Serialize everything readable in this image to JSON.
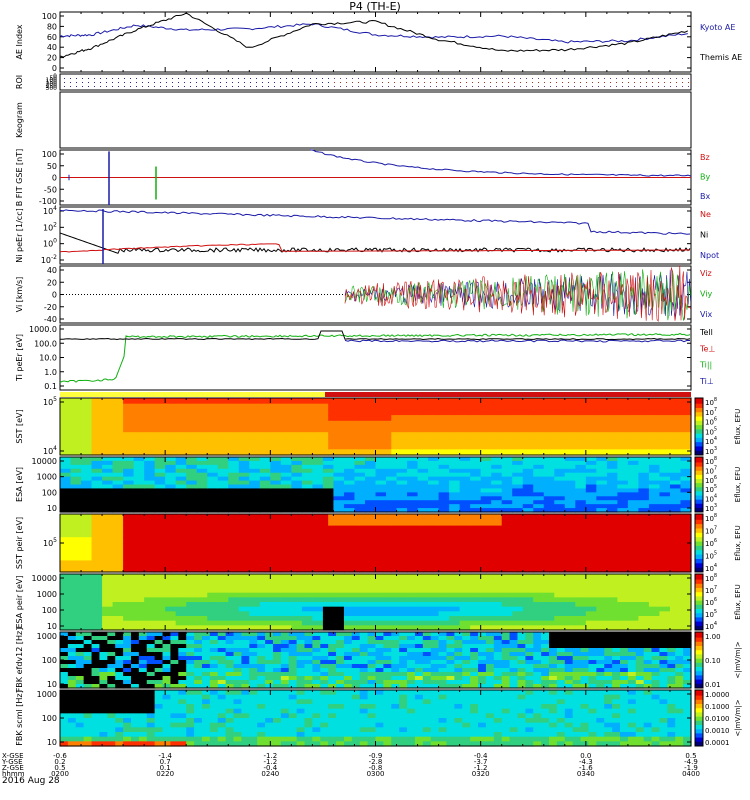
{
  "title": "P4 (TH-E)",
  "date": "2016 Aug 28",
  "colors": {
    "blue": "#1a1aa8",
    "red": "#d01010",
    "green": "#10b010",
    "black": "#000000"
  },
  "chart_data": [
    {
      "type": "line",
      "ylabel": "AE Index",
      "yticks": [
        "100",
        "80",
        "60",
        "40",
        "20",
        "0"
      ],
      "ylim": [
        0,
        100
      ],
      "legend": [
        "Kyoto AE",
        "Themis AE"
      ],
      "series": [
        {
          "name": "Kyoto AE",
          "color": "#1a1aa8",
          "x": [
            0,
            0.05,
            0.12,
            0.2,
            0.3,
            0.4,
            0.5,
            0.6,
            0.7,
            0.8,
            0.9,
            1.0
          ],
          "values": [
            60,
            62,
            78,
            70,
            72,
            80,
            62,
            58,
            60,
            50,
            52,
            65
          ]
        },
        {
          "name": "Themis AE",
          "color": "#000000",
          "x": [
            0,
            0.05,
            0.12,
            0.2,
            0.3,
            0.4,
            0.5,
            0.6,
            0.7,
            0.8,
            0.9,
            1.0
          ],
          "values": [
            25,
            40,
            70,
            98,
            40,
            80,
            84,
            54,
            35,
            37,
            48,
            70
          ]
        }
      ]
    },
    {
      "type": "other",
      "ylabel": "ROI",
      "yticks": [
        "0",
        "50",
        "100",
        "150",
        "200",
        "250",
        "300"
      ]
    },
    {
      "type": "other",
      "ylabel": "Keogram"
    },
    {
      "type": "line",
      "ylabel": "B FIT GSE [nT]",
      "yticks": [
        "100",
        "50",
        "0",
        "-50",
        "-100"
      ],
      "ylim": [
        -100,
        100
      ],
      "legend": [
        "Bz",
        "By",
        "Bx"
      ],
      "series": [
        {
          "name": "Bz",
          "color": "#d01010",
          "x": [
            0,
            1
          ],
          "values": [
            0,
            0
          ]
        },
        {
          "name": "By",
          "color": "#10b010",
          "x": [
            0.17,
            0.17
          ],
          "values": [
            -80,
            40
          ]
        },
        {
          "name": "Bx",
          "color": "#1a1aa8",
          "x": [
            0.45,
            0.5,
            0.6,
            0.7,
            0.8,
            0.9,
            1.0
          ],
          "values": [
            100,
            60,
            35,
            20,
            15,
            10,
            5
          ]
        }
      ]
    },
    {
      "type": "line",
      "ylabel": "Ni peEr [1/cc]",
      "yticks": [
        "10^4",
        "10^2",
        "10^0",
        "10^-2"
      ],
      "legend": [
        "Ne",
        "Ni",
        "Npot"
      ]
    },
    {
      "type": "line",
      "ylabel": "Vi [km/s]",
      "yticks": [
        "40",
        "20",
        "0",
        "-20",
        "-40"
      ],
      "ylim": [
        -50,
        50
      ],
      "legend": [
        "Viz",
        "Viy",
        "Vix"
      ]
    },
    {
      "type": "line",
      "ylabel": "Ti peEr [eV]",
      "yticks": [
        "1000.0",
        "100.0",
        "10.0",
        "1.0",
        "0.1"
      ],
      "legend": [
        "Tell",
        "Te⊥",
        "Ti||",
        "Ti⊥"
      ]
    },
    {
      "type": "heatmap",
      "ylabel": "SST [eV]",
      "yticks": [
        "10^5",
        "10^4"
      ],
      "colorbar_label": "Eflux, EFU",
      "colorbar_ticks": [
        "10^8",
        "10^7",
        "10^6",
        "10^5",
        "10^4",
        "10^3"
      ]
    },
    {
      "type": "heatmap",
      "ylabel": "ESA [eV]",
      "yticks": [
        "10000",
        "1000",
        "100",
        "10"
      ],
      "colorbar_label": "Eflux, EFU",
      "colorbar_ticks": [
        "10^8",
        "10^7",
        "10^6",
        "10^5",
        "10^4",
        "10^3"
      ]
    },
    {
      "type": "heatmap",
      "ylabel": "SST peir [eV]",
      "yticks": [
        "10^5"
      ],
      "colorbar_label": "Eflux, EFU",
      "colorbar_ticks": [
        "10^8",
        "10^7",
        "10^6",
        "10^5",
        "10^4"
      ]
    },
    {
      "type": "heatmap",
      "ylabel": "ESA peir [eV]",
      "yticks": [
        "10000",
        "1000",
        "100",
        "10"
      ],
      "colorbar_label": "Eflux, EFU",
      "colorbar_ticks": [
        "10^8",
        "10^7",
        "10^6",
        "10^5",
        "10^4"
      ]
    },
    {
      "type": "heatmap",
      "ylabel": "FBK efdv12 [Hz]",
      "yticks": [
        "1000",
        "100",
        "10"
      ],
      "colorbar_label": "<|mV/m|>",
      "colorbar_ticks": [
        "1.00",
        "0.10",
        "0.01"
      ]
    },
    {
      "type": "heatmap",
      "ylabel": "FBK scml [Hz]",
      "yticks": [
        "1000",
        "100",
        "10"
      ],
      "colorbar_label": "<|mV/m|>",
      "colorbar_ticks": [
        "1.0000",
        "0.1000",
        "0.0100",
        "0.0010",
        "0.0001"
      ]
    }
  ],
  "x_axis": {
    "row_labels": [
      "X-GSE",
      "Y-GSE",
      "Z-GSE",
      "hhmm"
    ],
    "columns": [
      {
        "vals": [
          "-0.6",
          "0.2",
          "0.5",
          "0200"
        ]
      },
      {
        "vals": [
          "-1.4",
          "0.7",
          "0.1",
          "0220"
        ]
      },
      {
        "vals": [
          "-1.2",
          "-1.2",
          "-0.4",
          "0240"
        ]
      },
      {
        "vals": [
          "-0.9",
          "-2.8",
          "-0.8",
          "0300"
        ]
      },
      {
        "vals": [
          "-0.4",
          "-3.7",
          "-1.2",
          "0320"
        ]
      },
      {
        "vals": [
          "0.0",
          "-4.3",
          "-1.6",
          "0340"
        ]
      },
      {
        "vals": [
          "0.5",
          "-4.9",
          "-1.9",
          "0400"
        ]
      }
    ]
  }
}
